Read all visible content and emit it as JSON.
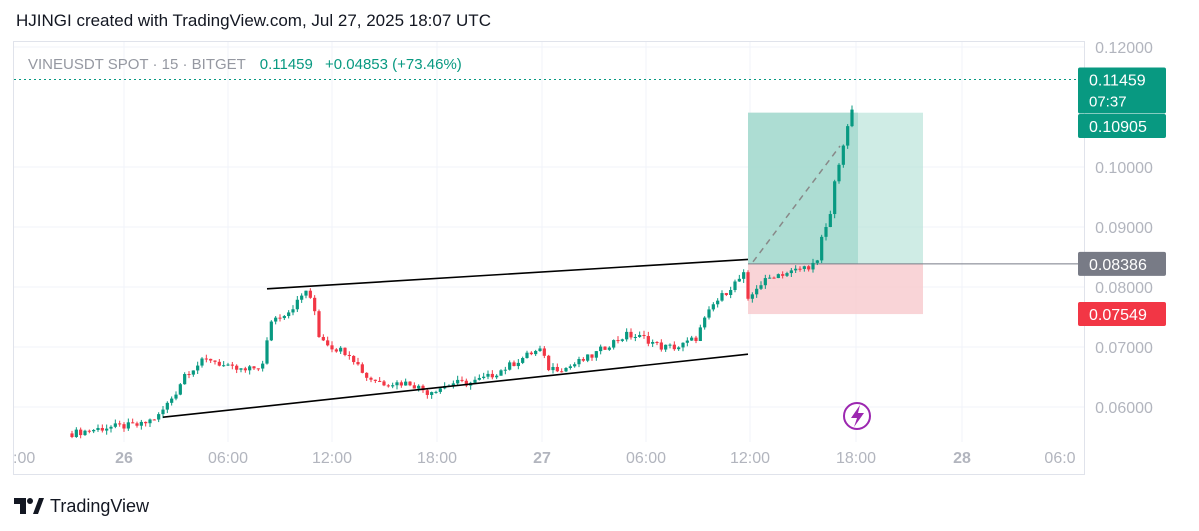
{
  "header": {
    "title": "HJINGI created with TradingView.com, Jul 27, 2025 18:07 UTC"
  },
  "legend": {
    "symbol": "VINEUSDT SPOT · 15 · BITGET",
    "last": "0.11459",
    "change": "+0.04853 (+73.46%)"
  },
  "footer": {
    "brand": "TradingView"
  },
  "colors": {
    "up": "#089981",
    "down": "#f23645",
    "grid": "#f0f3fa",
    "axis_text": "#b2b5be",
    "profit_zone": "#a8dcd0",
    "loss_zone": "#f8c9cd",
    "neutral_label": "#787b86",
    "lightning": "#9c27b0"
  },
  "chart_data": {
    "type": "candlestick",
    "x_ticks": [
      ":00",
      "26",
      "06:00",
      "12:00",
      "18:00",
      "27",
      "06:00",
      "12:00",
      "18:00",
      "28",
      "06:0"
    ],
    "y_ticks": [
      "0.12000",
      "0.10000",
      "0.09000",
      "0.08000",
      "0.07000",
      "0.06000"
    ],
    "y_range": [
      0.0545,
      0.1215
    ],
    "price_labels": [
      {
        "text": "0.11459",
        "sub": "07:37",
        "value": 0.11459,
        "kind": "last"
      },
      {
        "text": "0.10905",
        "value": 0.10905,
        "kind": "target"
      },
      {
        "text": "0.08386",
        "value": 0.08386,
        "kind": "entry"
      },
      {
        "text": "0.07549",
        "value": 0.07549,
        "kind": "stop"
      }
    ],
    "position": {
      "type": "long",
      "entry": 0.08386,
      "target": 0.10905,
      "stop": 0.07549
    },
    "trendlines": [
      {
        "name": "upper",
        "from": [
          "Jul 26 08:15",
          0.0797
        ],
        "to": [
          "Jul 27 12:00",
          0.0846
        ]
      },
      {
        "name": "lower",
        "from": [
          "Jul 26 02:15",
          0.0583
        ],
        "to": [
          "Jul 27 12:00",
          0.0688
        ]
      }
    ],
    "close_path": [
      [
        "Jul 25 21:00",
        0.0556
      ],
      [
        "Jul 25 23:00",
        0.0566
      ],
      [
        "Jul 26 01:00",
        0.057
      ],
      [
        "Jul 26 02:00",
        0.0585
      ],
      [
        "Jul 26 03:00",
        0.0625
      ],
      [
        "Jul 26 03:30",
        0.0655
      ],
      [
        "Jul 26 04:30",
        0.0675
      ],
      [
        "Jul 26 05:00",
        0.068
      ],
      [
        "Jul 26 06:00",
        0.0665
      ],
      [
        "Jul 26 07:00",
        0.066
      ],
      [
        "Jul 26 08:00",
        0.067
      ],
      [
        "Jul 26 08:30",
        0.0745
      ],
      [
        "Jul 26 09:30",
        0.076
      ],
      [
        "Jul 26 10:00",
        0.0775
      ],
      [
        "Jul 26 10:30",
        0.0795
      ],
      [
        "Jul 26 11:00",
        0.076
      ],
      [
        "Jul 26 11:15",
        0.072
      ],
      [
        "Jul 26 12:00",
        0.07
      ],
      [
        "Jul 26 13:00",
        0.069
      ],
      [
        "Jul 26 14:00",
        0.065
      ],
      [
        "Jul 26 15:00",
        0.064
      ],
      [
        "Jul 26 16:30",
        0.064
      ],
      [
        "Jul 26 17:30",
        0.0625
      ],
      [
        "Jul 26 19:00",
        0.064
      ],
      [
        "Jul 26 20:00",
        0.064
      ],
      [
        "Jul 26 21:00",
        0.065
      ],
      [
        "Jul 26 22:00",
        0.0665
      ],
      [
        "Jul 26 23:30",
        0.069
      ],
      [
        "Jul 27 00:00",
        0.0695
      ],
      [
        "Jul 27 00:30",
        0.0665
      ],
      [
        "Jul 27 01:30",
        0.0665
      ],
      [
        "Jul 27 03:00",
        0.0685
      ],
      [
        "Jul 27 04:00",
        0.0705
      ],
      [
        "Jul 27 05:00",
        0.072
      ],
      [
        "Jul 27 06:00",
        0.0715
      ],
      [
        "Jul 27 07:00",
        0.07
      ],
      [
        "Jul 27 08:00",
        0.07
      ],
      [
        "Jul 27 09:00",
        0.0715
      ],
      [
        "Jul 27 09:30",
        0.0745
      ],
      [
        "Jul 27 10:00",
        0.077
      ],
      [
        "Jul 27 11:00",
        0.08
      ],
      [
        "Jul 27 11:45",
        0.082
      ],
      [
        "Jul 27 12:00",
        0.0775
      ],
      [
        "Jul 27 12:30",
        0.08
      ],
      [
        "Jul 27 13:30",
        0.082
      ],
      [
        "Jul 27 14:30",
        0.0825
      ],
      [
        "Jul 27 15:30",
        0.0835
      ],
      [
        "Jul 27 16:00",
        0.084
      ],
      [
        "Jul 27 16:15",
        0.088
      ],
      [
        "Jul 27 16:45",
        0.092
      ],
      [
        "Jul 27 17:00",
        0.098
      ],
      [
        "Jul 27 17:30",
        0.103
      ],
      [
        "Jul 27 17:45",
        0.107
      ],
      [
        "Jul 27 18:00",
        0.109
      ],
      [
        "Jul 27 18:07",
        0.11459
      ]
    ]
  }
}
